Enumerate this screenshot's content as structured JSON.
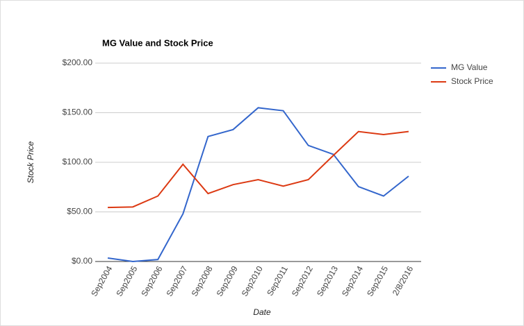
{
  "chart_data": {
    "type": "line",
    "title": "MG Value and Stock Price",
    "x_label": "Date",
    "y_label": "Stock Price",
    "categories": [
      "Sep2004",
      "Sep2005",
      "Sep2006",
      "Sep2007",
      "Sep2008",
      "Sep2009",
      "Sep2010",
      "Sep2011",
      "Sep2012",
      "Sep2013",
      "Sep2014",
      "Sep2015",
      "2/8/2016"
    ],
    "series": [
      {
        "name": "MG Value",
        "color": "#3366cc",
        "values": [
          3.5,
          0,
          2,
          48,
          126,
          133,
          155,
          152,
          117,
          108,
          75.5,
          66,
          86
        ]
      },
      {
        "name": "Stock Price",
        "color": "#dc3912",
        "values": [
          54.5,
          55,
          66,
          98,
          68.5,
          77.5,
          82.5,
          76,
          82.5,
          107,
          131,
          128,
          131
        ]
      }
    ],
    "ylim": [
      0,
      200
    ],
    "yticks": [
      {
        "value": 0,
        "label": "$0.00"
      },
      {
        "value": 50,
        "label": "$50.00"
      },
      {
        "value": 100,
        "label": "$100.00"
      },
      {
        "value": 150,
        "label": "$150.00"
      },
      {
        "value": 200,
        "label": "$200.00"
      }
    ],
    "grid": true,
    "legend": "right"
  }
}
